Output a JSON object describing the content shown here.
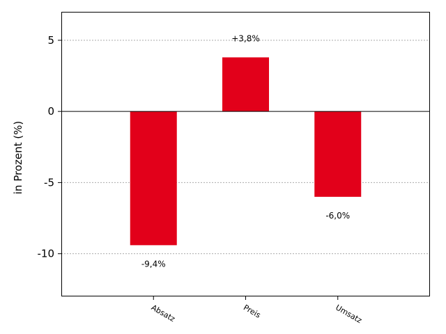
{
  "chart_data": {
    "type": "bar",
    "categories": [
      "Absatz",
      "Preis",
      "Umsatz"
    ],
    "values": [
      -9.4,
      3.8,
      -6.0
    ],
    "data_labels": [
      "-9,4%",
      "+3,8%",
      "-6,0%"
    ],
    "title": "",
    "xlabel": "",
    "ylabel": "in Prozent (%)",
    "ylim": [
      -13,
      7
    ],
    "yticks": [
      5,
      0,
      -5,
      -10
    ],
    "ytick_labels": [
      "5",
      "0",
      "-5",
      "-10"
    ],
    "grid": "horizontal-dotted",
    "legend": "none",
    "colors": {
      "bar": "#e2001a",
      "zero_line": "#000000",
      "grid": "#aaaaaa",
      "frame": "#000000"
    }
  }
}
